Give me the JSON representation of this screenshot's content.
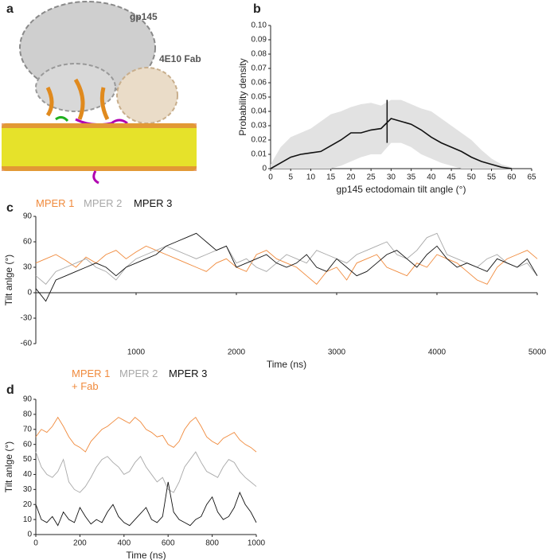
{
  "figure": {
    "panel_a": {
      "letter": "a",
      "labels": [
        "gp145",
        "4E10 Fab"
      ]
    }
  },
  "chart_data": [
    {
      "type": "line",
      "panel": "b",
      "xlabel": "gp145 ectodomain tilt angle (°)",
      "ylabel": "Probability density",
      "color": "#111111",
      "band_color": "#e2e2e2",
      "x": [
        0,
        2.5,
        5,
        7.5,
        10,
        12.5,
        15,
        17.5,
        20,
        22.5,
        25,
        27.5,
        30,
        32.5,
        35,
        37.5,
        40,
        42.5,
        45,
        47.5,
        50,
        52.5,
        55,
        57.5,
        60
      ],
      "values": [
        0,
        0.004,
        0.008,
        0.01,
        0.011,
        0.012,
        0.016,
        0.02,
        0.025,
        0.025,
        0.027,
        0.028,
        0.035,
        0.033,
        0.031,
        0.027,
        0.022,
        0.018,
        0.015,
        0.012,
        0.008,
        0.005,
        0.003,
        0.001,
        0
      ],
      "band": {
        "upper": [
          0.003,
          0.015,
          0.022,
          0.025,
          0.028,
          0.033,
          0.038,
          0.04,
          0.043,
          0.045,
          0.046,
          0.044,
          0.048,
          0.048,
          0.045,
          0.042,
          0.04,
          0.035,
          0.03,
          0.025,
          0.02,
          0.013,
          0.007,
          0.003,
          0.001
        ],
        "lower": [
          0,
          0,
          0,
          0,
          0,
          0,
          0,
          0.002,
          0.005,
          0.008,
          0.01,
          0.01,
          0.018,
          0.018,
          0.015,
          0.01,
          0.007,
          0.004,
          0.002,
          0,
          0,
          0,
          0,
          0,
          0
        ]
      },
      "marker": {
        "x": 29,
        "y": [
          0.018,
          0.048
        ]
      },
      "xlim": [
        0,
        65
      ],
      "xticks": [
        0,
        5,
        10,
        15,
        20,
        25,
        30,
        35,
        40,
        45,
        50,
        55,
        60,
        65
      ],
      "ylim": [
        0,
        0.1
      ],
      "yticks": [
        0,
        0.01,
        0.02,
        0.03,
        0.04,
        0.05,
        0.06,
        0.07,
        0.08,
        0.09,
        {
          "value": 0.1,
          "label": "0.10"
        }
      ]
    },
    {
      "type": "line",
      "panel": "c",
      "xlabel": "Time (ns)",
      "ylabel": "Tilt anlge (°)",
      "x": [
        0,
        100,
        200,
        300,
        400,
        500,
        600,
        700,
        800,
        900,
        1000,
        1100,
        1200,
        1300,
        1400,
        1500,
        1600,
        1700,
        1800,
        1900,
        2000,
        2100,
        2200,
        2300,
        2400,
        2500,
        2600,
        2700,
        2800,
        2900,
        3000,
        3100,
        3200,
        3300,
        3400,
        3500,
        3600,
        3700,
        3800,
        3900,
        4000,
        4100,
        4200,
        4300,
        4400,
        4500,
        4600,
        4700,
        4800,
        4900,
        5000
      ],
      "series": [
        {
          "name": "MPER 1",
          "color": "#f08a3c",
          "values": [
            35,
            40,
            45,
            38,
            30,
            42,
            35,
            45,
            50,
            40,
            48,
            55,
            50,
            45,
            40,
            35,
            30,
            25,
            35,
            40,
            30,
            25,
            45,
            50,
            40,
            35,
            30,
            20,
            10,
            25,
            30,
            15,
            35,
            40,
            45,
            30,
            25,
            20,
            35,
            30,
            45,
            40,
            35,
            25,
            15,
            10,
            30,
            40,
            45,
            50,
            40
          ]
        },
        {
          "name": "MPER 2",
          "color": "#a8a8a8",
          "values": [
            20,
            10,
            25,
            30,
            35,
            40,
            30,
            25,
            15,
            30,
            40,
            45,
            50,
            55,
            50,
            45,
            40,
            45,
            50,
            55,
            35,
            40,
            30,
            25,
            35,
            45,
            40,
            35,
            50,
            45,
            40,
            35,
            45,
            50,
            55,
            60,
            45,
            40,
            50,
            65,
            70,
            45,
            40,
            35,
            30,
            40,
            45,
            35,
            30,
            35,
            20
          ]
        },
        {
          "name": "MPER 3",
          "color": "#111111",
          "values": [
            5,
            -10,
            15,
            20,
            25,
            30,
            35,
            30,
            20,
            30,
            35,
            40,
            45,
            55,
            60,
            65,
            70,
            60,
            50,
            55,
            30,
            35,
            40,
            45,
            35,
            30,
            35,
            45,
            30,
            25,
            40,
            30,
            20,
            25,
            35,
            45,
            50,
            40,
            30,
            45,
            55,
            40,
            30,
            35,
            30,
            25,
            40,
            35,
            30,
            40,
            20
          ]
        }
      ],
      "xlim": [
        0,
        5000
      ],
      "xticks": [
        1000,
        2000,
        3000,
        4000,
        5000
      ],
      "ylim": [
        -60,
        90
      ],
      "yticks": [
        -60,
        -30,
        0,
        30,
        60,
        90
      ]
    },
    {
      "type": "line",
      "panel": "d",
      "xlabel": "Time (ns)",
      "ylabel": "Tilt anlge (°)",
      "x": [
        0,
        25,
        50,
        75,
        100,
        125,
        150,
        175,
        200,
        225,
        250,
        275,
        300,
        325,
        350,
        375,
        400,
        425,
        450,
        475,
        500,
        525,
        550,
        575,
        600,
        625,
        650,
        675,
        700,
        725,
        750,
        775,
        800,
        825,
        850,
        875,
        900,
        925,
        950,
        975,
        1000
      ],
      "series": [
        {
          "name": "MPER 1 + Fab",
          "color": "#f08a3c",
          "values": [
            65,
            70,
            68,
            72,
            78,
            72,
            65,
            60,
            58,
            55,
            62,
            66,
            70,
            72,
            75,
            78,
            76,
            74,
            78,
            75,
            70,
            68,
            65,
            66,
            60,
            58,
            62,
            70,
            75,
            78,
            72,
            65,
            62,
            60,
            64,
            66,
            68,
            63,
            60,
            58,
            55
          ]
        },
        {
          "name": "MPER 2",
          "color": "#a8a8a8",
          "values": [
            55,
            45,
            40,
            38,
            42,
            50,
            35,
            30,
            28,
            32,
            38,
            45,
            50,
            52,
            48,
            45,
            40,
            42,
            48,
            52,
            45,
            40,
            35,
            38,
            30,
            28,
            35,
            45,
            50,
            55,
            48,
            42,
            40,
            38,
            45,
            50,
            48,
            42,
            38,
            35,
            32
          ]
        },
        {
          "name": "MPER 3",
          "color": "#111111",
          "values": [
            20,
            10,
            8,
            12,
            6,
            15,
            10,
            8,
            18,
            12,
            7,
            10,
            8,
            15,
            20,
            12,
            8,
            6,
            10,
            14,
            18,
            10,
            8,
            12,
            35,
            15,
            10,
            8,
            6,
            10,
            12,
            20,
            25,
            15,
            10,
            12,
            18,
            28,
            20,
            15,
            8
          ]
        }
      ],
      "xlim": [
        0,
        1000
      ],
      "xticks": [
        0,
        200,
        400,
        600,
        800,
        1000
      ],
      "ylim": [
        0,
        90
      ],
      "yticks": [
        0,
        10,
        20,
        30,
        40,
        50,
        60,
        70,
        80,
        90
      ]
    }
  ]
}
